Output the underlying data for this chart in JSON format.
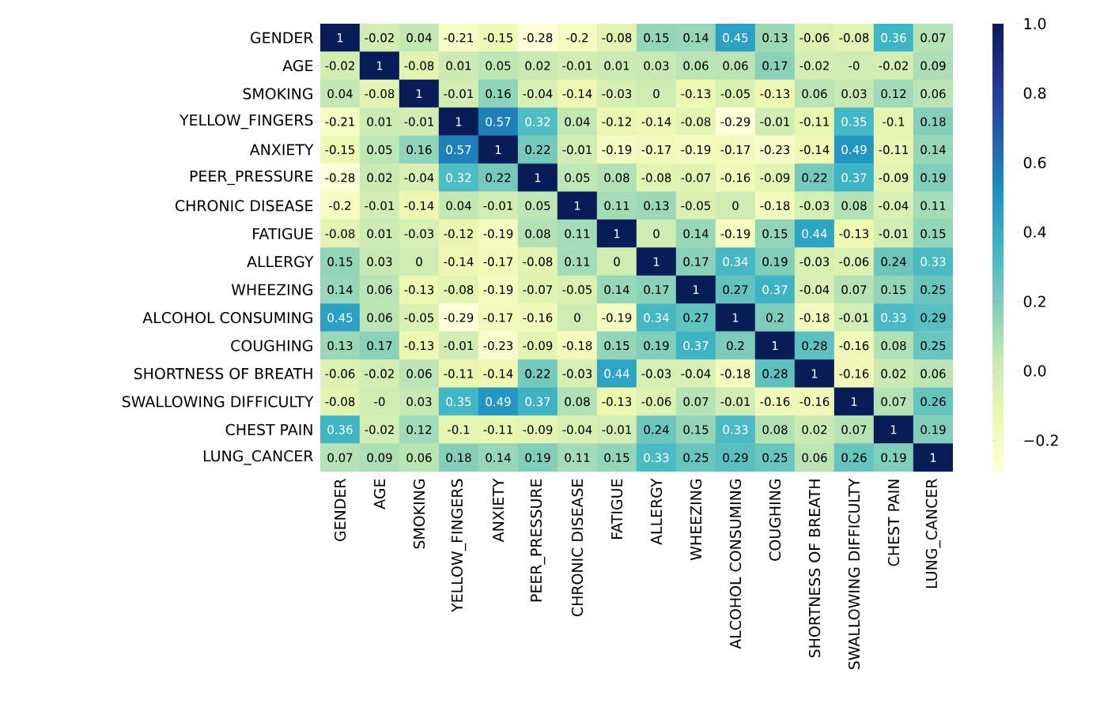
{
  "chart_data": {
    "type": "heatmap",
    "categories": [
      "GENDER",
      "AGE",
      "SMOKING",
      "YELLOW_FINGERS",
      "ANXIETY",
      "PEER_PRESSURE",
      "CHRONIC DISEASE",
      "FATIGUE",
      "ALLERGY",
      "WHEEZING",
      "ALCOHOL CONSUMING",
      "COUGHING",
      "SHORTNESS OF BREATH",
      "SWALLOWING DIFFICULTY",
      "CHEST PAIN",
      "LUNG_CANCER"
    ],
    "y_categories": [
      "GENDER",
      "AGE",
      "SMOKING",
      "YELLOW_FINGERS",
      "ANXIETY",
      "PEER_PRESSURE",
      "CHRONIC DISEASE",
      "FATIGUE",
      "ALLERGY",
      "WHEEZING",
      "ALCOHOL CONSUMING",
      "COUGHING",
      "SHORTNESS OF BREATH",
      "SWALLOWING DIFFICULTY",
      "CHEST PAIN",
      "LUNG_CANCER"
    ],
    "cells": [
      [
        1,
        -0.02,
        0.04,
        -0.21,
        -0.15,
        -0.28,
        -0.2,
        -0.08,
        0.15,
        0.14,
        0.45,
        0.13,
        -0.06,
        -0.08,
        0.36,
        0.07
      ],
      [
        -0.02,
        1,
        -0.08,
        0.01,
        0.05,
        0.02,
        -0.01,
        0.01,
        0.03,
        0.06,
        0.06,
        0.17,
        -0.02,
        0,
        -0.02,
        0.09
      ],
      [
        0.04,
        -0.08,
        1,
        -0.01,
        0.16,
        -0.04,
        -0.14,
        -0.03,
        0,
        -0.13,
        -0.05,
        -0.13,
        0.06,
        0.03,
        0.12,
        0.06
      ],
      [
        -0.21,
        0.01,
        -0.01,
        1,
        0.57,
        0.32,
        0.04,
        -0.12,
        -0.14,
        -0.08,
        -0.29,
        -0.01,
        -0.11,
        0.35,
        -0.1,
        0.18
      ],
      [
        -0.15,
        0.05,
        0.16,
        0.57,
        1,
        0.22,
        -0.01,
        -0.19,
        -0.17,
        -0.19,
        -0.17,
        -0.23,
        -0.14,
        0.49,
        -0.11,
        0.14
      ],
      [
        -0.28,
        0.02,
        -0.04,
        0.32,
        0.22,
        1,
        0.05,
        0.08,
        -0.08,
        -0.07,
        -0.16,
        -0.09,
        0.22,
        0.37,
        -0.09,
        0.19
      ],
      [
        -0.2,
        -0.01,
        -0.14,
        0.04,
        -0.01,
        0.05,
        1,
        0.11,
        0.13,
        -0.05,
        0,
        -0.18,
        -0.03,
        0.08,
        -0.04,
        0.11
      ],
      [
        -0.08,
        0.01,
        -0.03,
        -0.12,
        -0.19,
        0.08,
        0.11,
        1,
        0,
        0.14,
        -0.19,
        0.15,
        0.44,
        -0.13,
        -0.01,
        0.15
      ],
      [
        0.15,
        0.03,
        0,
        -0.14,
        -0.17,
        -0.08,
        0.11,
        0,
        1,
        0.17,
        0.34,
        0.19,
        -0.03,
        -0.06,
        0.24,
        0.33
      ],
      [
        0.14,
        0.06,
        -0.13,
        -0.08,
        -0.19,
        -0.07,
        -0.05,
        0.14,
        0.17,
        1,
        0.27,
        0.37,
        -0.04,
        0.07,
        0.15,
        0.25
      ],
      [
        0.45,
        0.06,
        -0.05,
        -0.29,
        -0.17,
        -0.16,
        0,
        -0.19,
        0.34,
        0.27,
        1,
        0.2,
        -0.18,
        -0.01,
        0.33,
        0.29
      ],
      [
        0.13,
        0.17,
        -0.13,
        -0.01,
        -0.23,
        -0.09,
        -0.18,
        0.15,
        0.19,
        0.37,
        0.2,
        1,
        0.28,
        -0.16,
        0.08,
        0.25
      ],
      [
        -0.06,
        -0.02,
        0.06,
        -0.11,
        -0.14,
        0.22,
        -0.03,
        0.44,
        -0.03,
        -0.04,
        -0.18,
        0.28,
        1,
        -0.16,
        0.02,
        0.06
      ],
      [
        -0.08,
        0,
        0.03,
        0.35,
        0.49,
        0.37,
        0.08,
        -0.13,
        -0.06,
        0.07,
        -0.01,
        -0.16,
        -0.16,
        1,
        0.07,
        0.26
      ],
      [
        0.36,
        -0.02,
        0.12,
        -0.1,
        -0.11,
        -0.09,
        -0.04,
        -0.01,
        0.24,
        0.15,
        0.33,
        0.08,
        0.02,
        0.07,
        1,
        0.19
      ],
      [
        0.07,
        0.09,
        0.06,
        0.18,
        0.14,
        0.19,
        0.11,
        0.15,
        0.33,
        0.25,
        0.29,
        0.25,
        0.06,
        0.26,
        0.19,
        1
      ]
    ],
    "cell_labels": [
      [
        "1",
        "-0.02",
        "0.04",
        "-0.21",
        "-0.15",
        "-0.28",
        "-0.2",
        "-0.08",
        "0.15",
        "0.14",
        "0.45",
        "0.13",
        "-0.06",
        "-0.08",
        "0.36",
        "0.07"
      ],
      [
        "-0.02",
        "1",
        "-0.08",
        "0.01",
        "0.05",
        "0.02",
        "-0.01",
        "0.01",
        "0.03",
        "0.06",
        "0.06",
        "0.17",
        "-0.02",
        "-0",
        "-0.02",
        "0.09"
      ],
      [
        "0.04",
        "-0.08",
        "1",
        "-0.01",
        "0.16",
        "-0.04",
        "-0.14",
        "-0.03",
        "0",
        "-0.13",
        "-0.05",
        "-0.13",
        "0.06",
        "0.03",
        "0.12",
        "0.06"
      ],
      [
        "-0.21",
        "0.01",
        "-0.01",
        "1",
        "0.57",
        "0.32",
        "0.04",
        "-0.12",
        "-0.14",
        "-0.08",
        "-0.29",
        "-0.01",
        "-0.11",
        "0.35",
        "-0.1",
        "0.18"
      ],
      [
        "-0.15",
        "0.05",
        "0.16",
        "0.57",
        "1",
        "0.22",
        "-0.01",
        "-0.19",
        "-0.17",
        "-0.19",
        "-0.17",
        "-0.23",
        "-0.14",
        "0.49",
        "-0.11",
        "0.14"
      ],
      [
        "-0.28",
        "0.02",
        "-0.04",
        "0.32",
        "0.22",
        "1",
        "0.05",
        "0.08",
        "-0.08",
        "-0.07",
        "-0.16",
        "-0.09",
        "0.22",
        "0.37",
        "-0.09",
        "0.19"
      ],
      [
        "-0.2",
        "-0.01",
        "-0.14",
        "0.04",
        "-0.01",
        "0.05",
        "1",
        "0.11",
        "0.13",
        "-0.05",
        "0",
        "-0.18",
        "-0.03",
        "0.08",
        "-0.04",
        "0.11"
      ],
      [
        "-0.08",
        "0.01",
        "-0.03",
        "-0.12",
        "-0.19",
        "0.08",
        "0.11",
        "1",
        "0",
        "0.14",
        "-0.19",
        "0.15",
        "0.44",
        "-0.13",
        "-0.01",
        "0.15"
      ],
      [
        "0.15",
        "0.03",
        "0",
        "-0.14",
        "-0.17",
        "-0.08",
        "0.11",
        "0",
        "1",
        "0.17",
        "0.34",
        "0.19",
        "-0.03",
        "-0.06",
        "0.24",
        "0.33"
      ],
      [
        "0.14",
        "0.06",
        "-0.13",
        "-0.08",
        "-0.19",
        "-0.07",
        "-0.05",
        "0.14",
        "0.17",
        "1",
        "0.27",
        "0.37",
        "-0.04",
        "0.07",
        "0.15",
        "0.25"
      ],
      [
        "0.45",
        "0.06",
        "-0.05",
        "-0.29",
        "-0.17",
        "-0.16",
        "0",
        "-0.19",
        "0.34",
        "0.27",
        "1",
        "0.2",
        "-0.18",
        "-0.01",
        "0.33",
        "0.29"
      ],
      [
        "0.13",
        "0.17",
        "-0.13",
        "-0.01",
        "-0.23",
        "-0.09",
        "-0.18",
        "0.15",
        "0.19",
        "0.37",
        "0.2",
        "1",
        "0.28",
        "-0.16",
        "0.08",
        "0.25"
      ],
      [
        "-0.06",
        "-0.02",
        "0.06",
        "-0.11",
        "-0.14",
        "0.22",
        "-0.03",
        "0.44",
        "-0.03",
        "-0.04",
        "-0.18",
        "0.28",
        "1",
        "-0.16",
        "0.02",
        "0.06"
      ],
      [
        "-0.08",
        "-0",
        "0.03",
        "0.35",
        "0.49",
        "0.37",
        "0.08",
        "-0.13",
        "-0.06",
        "0.07",
        "-0.01",
        "-0.16",
        "-0.16",
        "1",
        "0.07",
        "0.26"
      ],
      [
        "0.36",
        "-0.02",
        "0.12",
        "-0.1",
        "-0.11",
        "-0.09",
        "-0.04",
        "-0.01",
        "0.24",
        "0.15",
        "0.33",
        "0.08",
        "0.02",
        "0.07",
        "1",
        "0.19"
      ],
      [
        "0.07",
        "0.09",
        "0.06",
        "0.18",
        "0.14",
        "0.19",
        "0.11",
        "0.15",
        "0.33",
        "0.25",
        "0.29",
        "0.25",
        "0.06",
        "0.26",
        "0.19",
        "1"
      ]
    ],
    "data_labels": true,
    "clim": [
      -0.29,
      1
    ],
    "cticks": [
      {
        "value": -0.2,
        "label": "−0.2"
      },
      {
        "value": 0,
        "label": "0.0"
      },
      {
        "value": 0.2,
        "label": "0.2"
      },
      {
        "value": 0.4,
        "label": "0.4"
      },
      {
        "value": 0.6,
        "label": "0.6"
      },
      {
        "value": 0.8,
        "label": "0.8"
      },
      {
        "value": 1,
        "label": "1.0"
      }
    ]
  }
}
